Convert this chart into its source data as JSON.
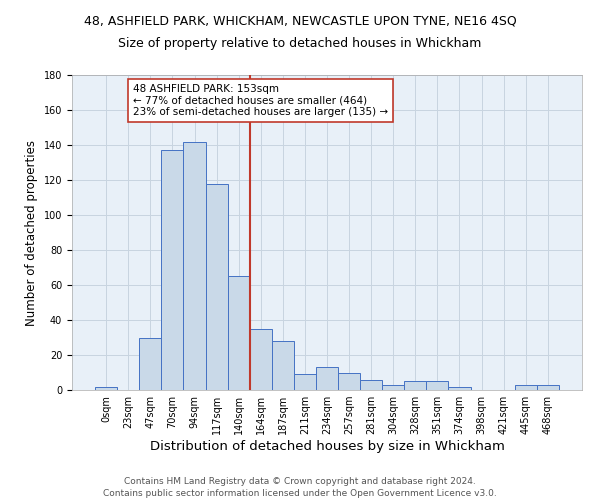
{
  "title": "48, ASHFIELD PARK, WHICKHAM, NEWCASTLE UPON TYNE, NE16 4SQ",
  "subtitle": "Size of property relative to detached houses in Whickham",
  "xlabel": "Distribution of detached houses by size in Whickham",
  "ylabel": "Number of detached properties",
  "bin_labels": [
    "0sqm",
    "23sqm",
    "47sqm",
    "70sqm",
    "94sqm",
    "117sqm",
    "140sqm",
    "164sqm",
    "187sqm",
    "211sqm",
    "234sqm",
    "257sqm",
    "281sqm",
    "304sqm",
    "328sqm",
    "351sqm",
    "374sqm",
    "398sqm",
    "421sqm",
    "445sqm",
    "468sqm"
  ],
  "bar_heights": [
    2,
    0,
    30,
    137,
    142,
    118,
    65,
    35,
    28,
    9,
    13,
    10,
    6,
    3,
    5,
    5,
    2,
    0,
    0,
    3,
    3
  ],
  "bar_color": "#c9d9e8",
  "bar_edge_color": "#4472c4",
  "vline_color": "#c0392b",
  "annotation_line1": "48 ASHFIELD PARK: 153sqm",
  "annotation_line2": "← 77% of detached houses are smaller (464)",
  "annotation_line3": "23% of semi-detached houses are larger (135) →",
  "annotation_box_color": "white",
  "annotation_box_edge": "#c0392b",
  "ylim": [
    0,
    180
  ],
  "yticks": [
    0,
    20,
    40,
    60,
    80,
    100,
    120,
    140,
    160,
    180
  ],
  "grid_color": "#c8d4e0",
  "background_color": "#e8f0f8",
  "footer_line1": "Contains HM Land Registry data © Crown copyright and database right 2024.",
  "footer_line2": "Contains public sector information licensed under the Open Government Licence v3.0.",
  "title_fontsize": 9,
  "subtitle_fontsize": 9,
  "xlabel_fontsize": 9.5,
  "ylabel_fontsize": 8.5,
  "tick_fontsize": 7,
  "annotation_fontsize": 7.5,
  "footer_fontsize": 6.5
}
